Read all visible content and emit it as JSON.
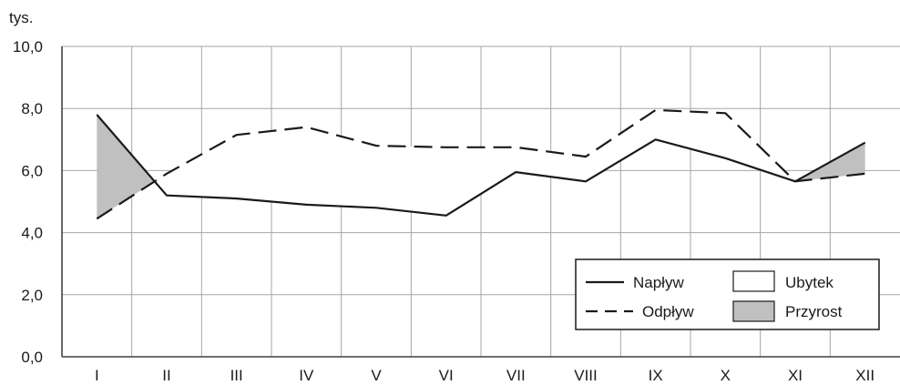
{
  "chart_data": {
    "type": "line",
    "title": "",
    "xlabel": "",
    "ylabel": "tys.",
    "categories": [
      "I",
      "II",
      "III",
      "IV",
      "V",
      "VI",
      "VII",
      "VIII",
      "IX",
      "X",
      "XI",
      "XII"
    ],
    "ylim": [
      0,
      10
    ],
    "yticks": [
      "0,0",
      "2,0",
      "4,0",
      "6,0",
      "8,0",
      "10,0"
    ],
    "grid": true,
    "legend_position": "bottom-right",
    "series": [
      {
        "name": "Napływ",
        "style": "solid",
        "values": [
          7.8,
          5.2,
          5.1,
          4.9,
          4.8,
          4.55,
          5.95,
          5.65,
          7.0,
          6.4,
          5.65,
          6.9
        ]
      },
      {
        "name": "Odpływ",
        "style": "dashed",
        "values": [
          4.45,
          5.9,
          7.15,
          7.4,
          6.8,
          6.75,
          6.75,
          6.45,
          7.95,
          7.85,
          5.65,
          5.9
        ]
      }
    ],
    "fill_legend": [
      {
        "name": "Ubytek",
        "color": "#ffffff"
      },
      {
        "name": "Przyrost",
        "color": "#c0c0c0"
      }
    ]
  }
}
